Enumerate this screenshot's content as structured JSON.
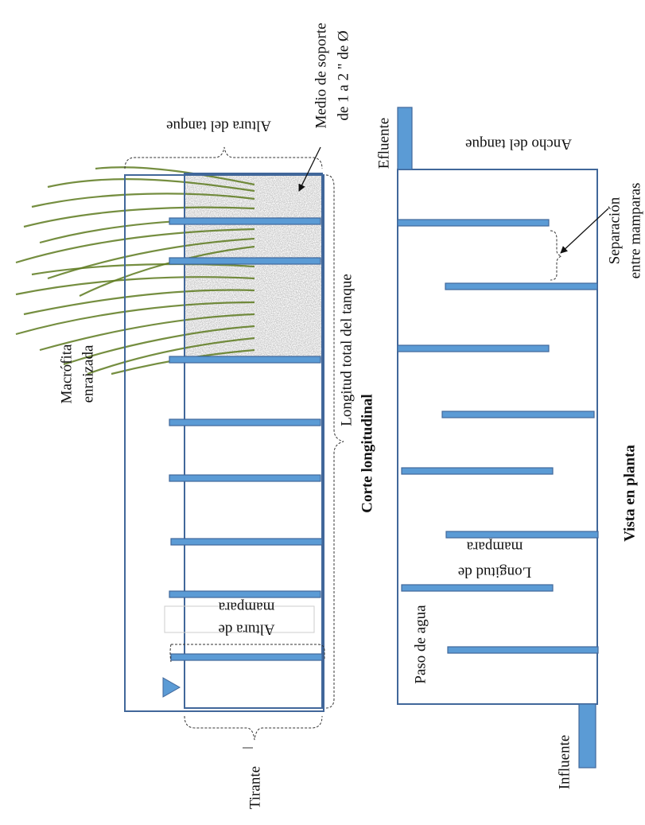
{
  "labels": {
    "macrofita": [
      "Macrófita",
      "enraizada"
    ],
    "tirante": "Tirante",
    "longitud_total": "Longitud total del tanque",
    "corte": "Corte longitudinal",
    "medio": [
      "Medio de soporte",
      "de 1 a 2 \" de Ø"
    ],
    "altura_tanque": "Altura del tanque",
    "altura_mampara": [
      "Altura de",
      "mampara"
    ],
    "efluente": "Efluente",
    "ancho": "Ancho del tanque",
    "separacion": [
      "Separación",
      "entre mamparas"
    ],
    "longitud_mampara": [
      "Longitud de",
      "mampara"
    ],
    "paso": "Paso de agua",
    "influente": "Influente",
    "vista": "Vista en planta"
  }
}
